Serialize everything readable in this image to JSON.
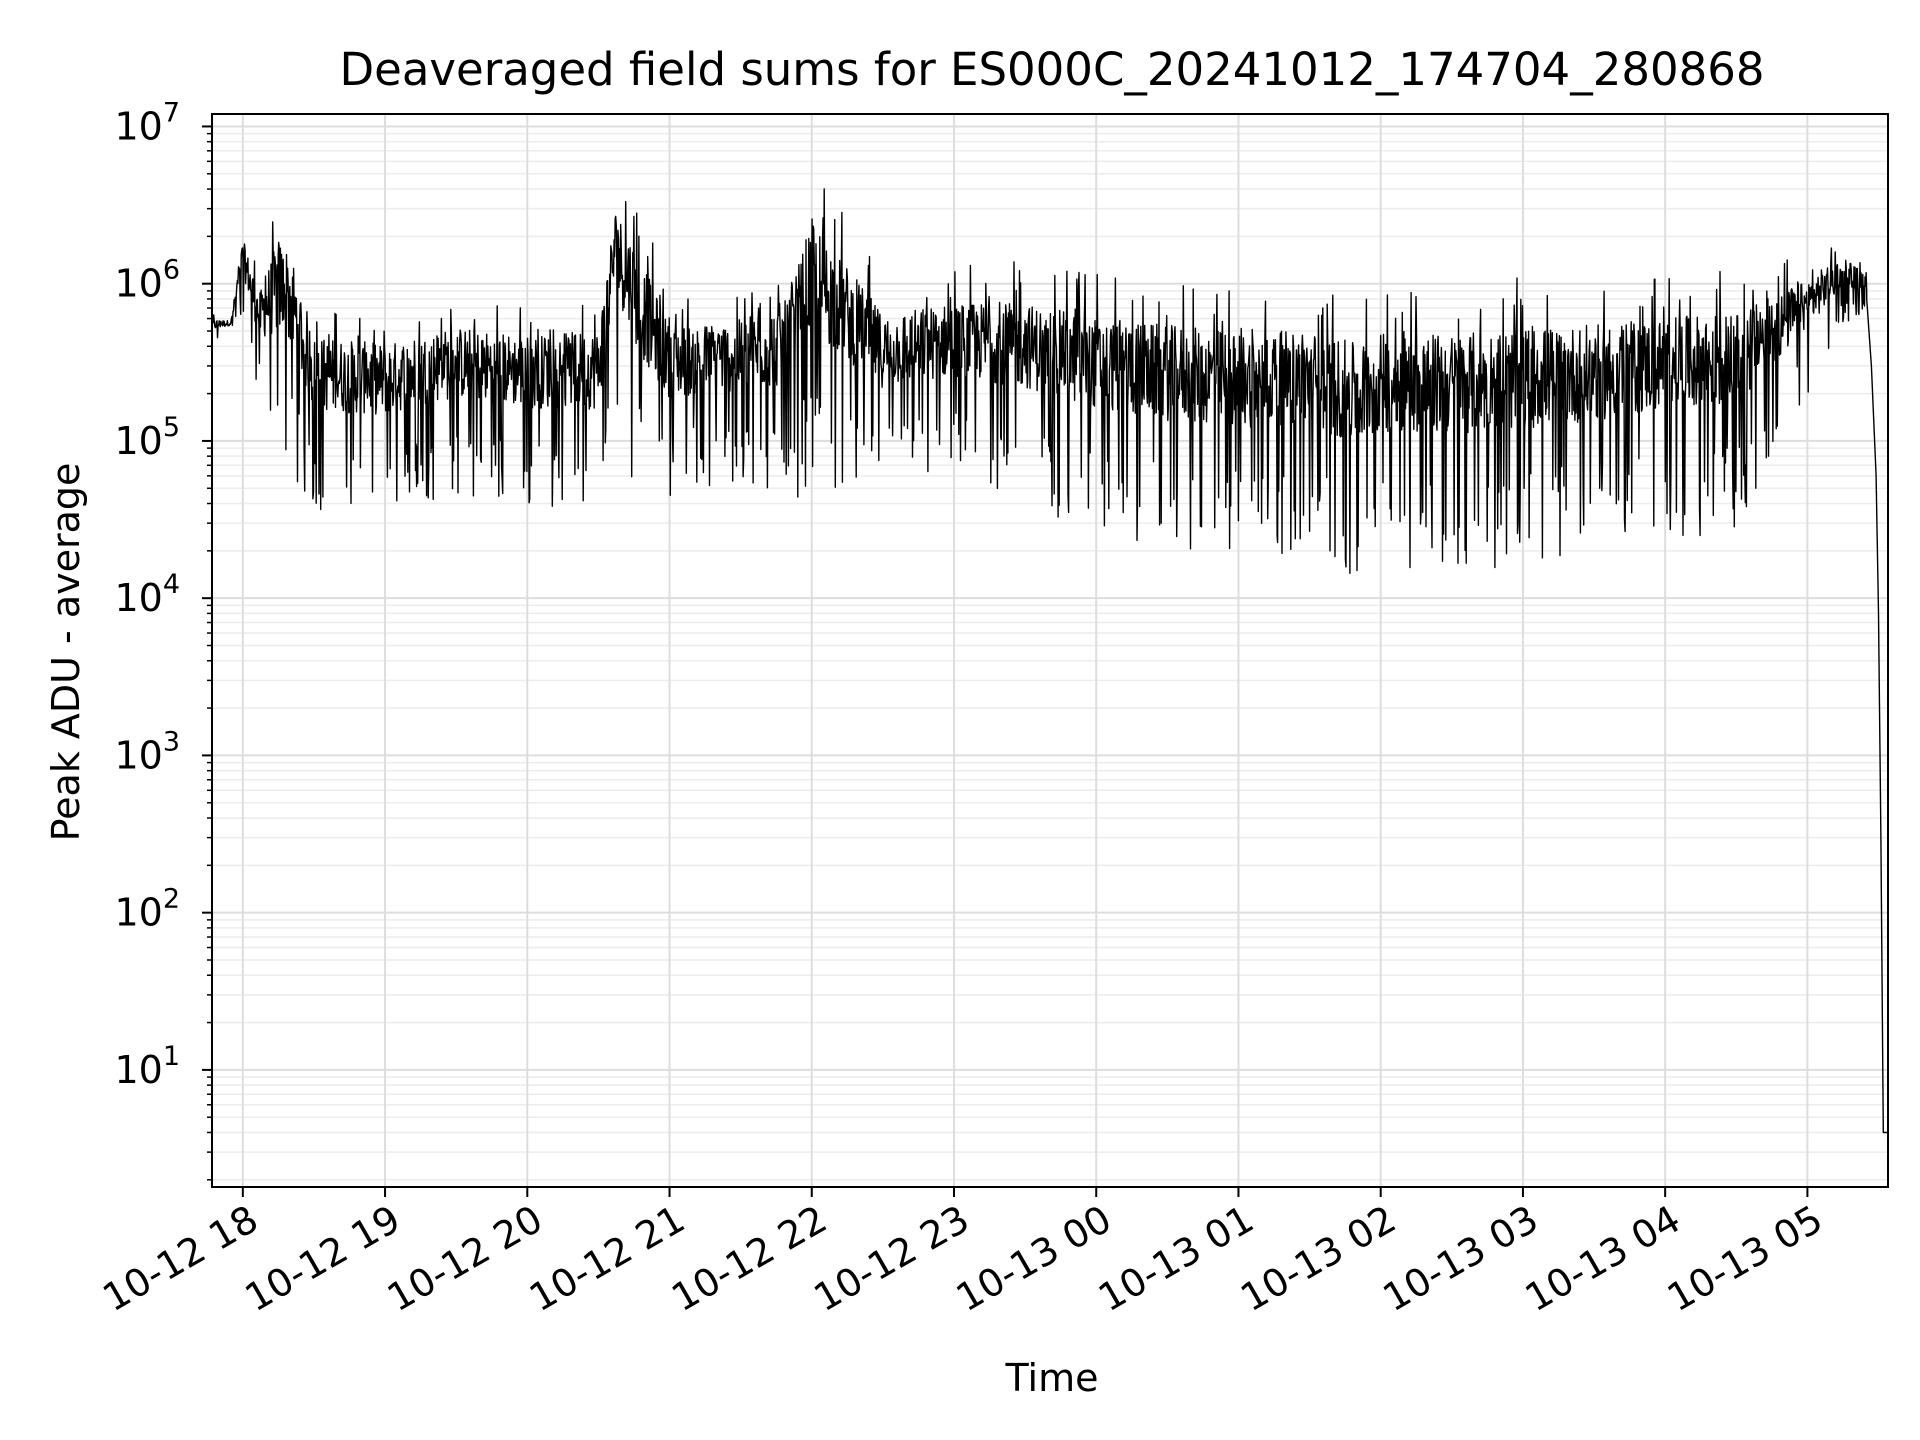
{
  "chart_data": {
    "type": "line",
    "title": "Deaveraged field sums for ES000C_20241012_174704_280868",
    "xlabel": "Time",
    "ylabel": "Peak ADU - average",
    "yscale": "log",
    "xlim": [
      "2024-10-12 17:47",
      "2024-10-13 05:34"
    ],
    "ylim": [
      1.8,
      12000000
    ],
    "grid": "major and minor, light gray",
    "line_color": "#000000",
    "x_tick_labels": [
      "10-12 18",
      "10-12 19",
      "10-12 20",
      "10-12 21",
      "10-12 22",
      "10-12 23",
      "10-13 00",
      "10-13 01",
      "10-13 02",
      "10-13 03",
      "10-13 04",
      "10-13 05"
    ],
    "x_ticks": [
      "2024-10-12 18:00",
      "2024-10-12 19:00",
      "2024-10-12 20:00",
      "2024-10-12 21:00",
      "2024-10-12 22:00",
      "2024-10-12 23:00",
      "2024-10-13 00:00",
      "2024-10-13 01:00",
      "2024-10-13 02:00",
      "2024-10-13 03:00",
      "2024-10-13 04:00",
      "2024-10-13 05:00"
    ],
    "y_ticks": [
      {
        "base": "10",
        "exp": "1",
        "value": 10
      },
      {
        "base": "10",
        "exp": "2",
        "value": 100
      },
      {
        "base": "10",
        "exp": "3",
        "value": 1000
      },
      {
        "base": "10",
        "exp": "4",
        "value": 10000
      },
      {
        "base": "10",
        "exp": "5",
        "value": 100000
      },
      {
        "base": "10",
        "exp": "6",
        "value": 1000000
      },
      {
        "base": "10",
        "exp": "7",
        "value": 10000000
      }
    ],
    "series": [
      {
        "envelope": true,
        "points": [
          {
            "x": "2024-10-12 17:47",
            "high": 650000,
            "low": 400000
          },
          {
            "x": "2024-10-12 17:55",
            "high": 600000,
            "low": 500000
          },
          {
            "x": "2024-10-12 18:00",
            "high": 2500000,
            "low": 600000
          },
          {
            "x": "2024-10-12 18:07",
            "high": 1200000,
            "low": 180000
          },
          {
            "x": "2024-10-12 18:15",
            "high": 4000000,
            "low": 70000
          },
          {
            "x": "2024-10-12 18:20",
            "high": 3500000,
            "low": 50000
          },
          {
            "x": "2024-10-12 18:30",
            "high": 800000,
            "low": 35000
          },
          {
            "x": "2024-10-12 19:00",
            "high": 700000,
            "low": 35000
          },
          {
            "x": "2024-10-12 19:30",
            "high": 900000,
            "low": 45000
          },
          {
            "x": "2024-10-12 20:00",
            "high": 800000,
            "low": 38000
          },
          {
            "x": "2024-10-12 20:30",
            "high": 900000,
            "low": 33000
          },
          {
            "x": "2024-10-12 20:37",
            "high": 5500000,
            "low": 200000
          },
          {
            "x": "2024-10-12 20:45",
            "high": 4000000,
            "low": 50000
          },
          {
            "x": "2024-10-12 21:00",
            "high": 900000,
            "low": 45000
          },
          {
            "x": "2024-10-12 21:30",
            "high": 1000000,
            "low": 50000
          },
          {
            "x": "2024-10-12 21:50",
            "high": 1500000,
            "low": 40000
          },
          {
            "x": "2024-10-12 22:00",
            "high": 6000000,
            "low": 50000
          },
          {
            "x": "2024-10-12 22:30",
            "high": 1100000,
            "low": 50000
          },
          {
            "x": "2024-10-12 23:00",
            "high": 1300000,
            "low": 60000
          },
          {
            "x": "2024-10-12 23:30",
            "high": 1400000,
            "low": 40000
          },
          {
            "x": "2024-10-13 00:00",
            "high": 1200000,
            "low": 25000
          },
          {
            "x": "2024-10-13 00:30",
            "high": 1100000,
            "low": 20000
          },
          {
            "x": "2024-10-13 01:00",
            "high": 1000000,
            "low": 18000
          },
          {
            "x": "2024-10-13 01:30",
            "high": 1000000,
            "low": 20000
          },
          {
            "x": "2024-10-13 01:50",
            "high": 900000,
            "low": 11000
          },
          {
            "x": "2024-10-13 02:00",
            "high": 1000000,
            "low": 16000
          },
          {
            "x": "2024-10-13 02:30",
            "high": 1000000,
            "low": 15000
          },
          {
            "x": "2024-10-13 03:00",
            "high": 1100000,
            "low": 16000
          },
          {
            "x": "2024-10-13 03:30",
            "high": 1100000,
            "low": 20000
          },
          {
            "x": "2024-10-13 04:00",
            "high": 1200000,
            "low": 25000
          },
          {
            "x": "2024-10-13 04:30",
            "high": 1300000,
            "low": 25000
          },
          {
            "x": "2024-10-13 05:00",
            "high": 1500000,
            "low": 200000
          },
          {
            "x": "2024-10-13 05:15",
            "high": 2000000,
            "low": 500000
          },
          {
            "x": "2024-10-13 05:25",
            "high": 1200000,
            "low": 700000
          }
        ],
        "tail": [
          {
            "x": "2024-10-13 05:25",
            "y": 800000
          },
          {
            "x": "2024-10-13 05:27",
            "y": 300000
          },
          {
            "x": "2024-10-13 05:29",
            "y": 60000
          },
          {
            "x": "2024-10-13 05:30",
            "y": 8000
          },
          {
            "x": "2024-10-13 05:31",
            "y": 300
          },
          {
            "x": "2024-10-13 05:32",
            "y": 4
          },
          {
            "x": "2024-10-13 05:34",
            "y": 4
          }
        ]
      }
    ]
  }
}
